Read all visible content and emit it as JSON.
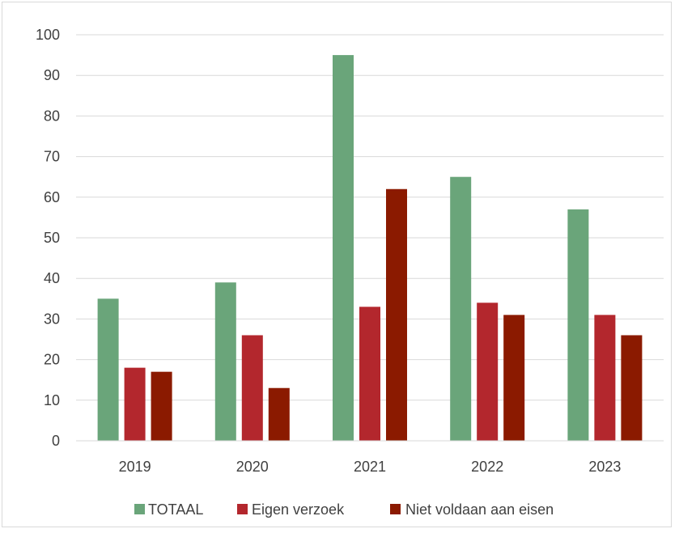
{
  "chart_data": {
    "type": "bar",
    "title": "",
    "xlabel": "",
    "ylabel": "",
    "categories": [
      "2019",
      "2020",
      "2021",
      "2022",
      "2023"
    ],
    "ylim": [
      0,
      100
    ],
    "yticks": [
      0,
      10,
      20,
      30,
      40,
      50,
      60,
      70,
      80,
      90,
      100
    ],
    "grid": true,
    "legend_position": "bottom",
    "series": [
      {
        "name": "TOTAAL",
        "color": "#6aa57a",
        "values": [
          35,
          39,
          95,
          65,
          57
        ]
      },
      {
        "name": "Eigen verzoek",
        "color": "#b3272d",
        "values": [
          18,
          26,
          33,
          34,
          31
        ]
      },
      {
        "name": "Niet voldaan aan eisen",
        "color": "#8b1a00",
        "values": [
          17,
          13,
          62,
          31,
          26
        ]
      }
    ]
  }
}
